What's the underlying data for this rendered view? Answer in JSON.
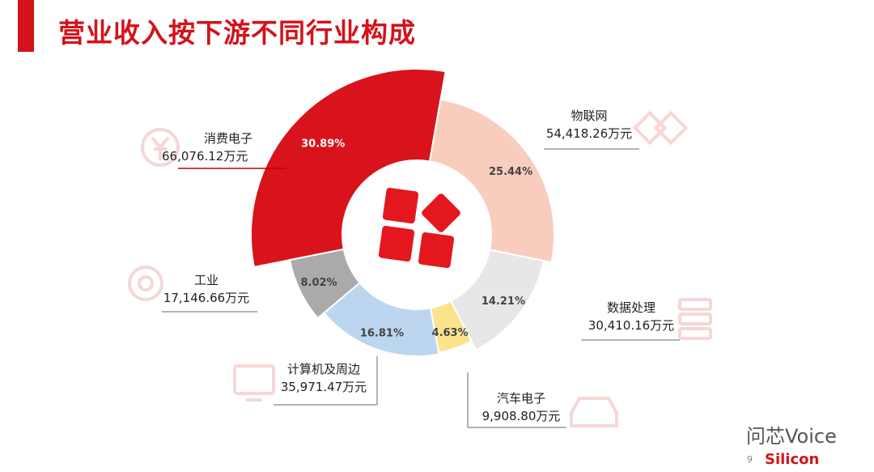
{
  "header": {
    "title": "营业收入按下游不同行业构成"
  },
  "chart_data": {
    "type": "pie",
    "subtype": "rose-donut",
    "title": "营业收入按下游不同行业构成",
    "unit": "万元",
    "slices": [
      {
        "name": "消费电子",
        "value": "66,076.12万元",
        "percent": "30.89%",
        "share": 30.89,
        "color": "#d9131b"
      },
      {
        "name": "物联网",
        "value": "54,418.26万元",
        "percent": "25.44%",
        "share": 25.44,
        "color": "#f9cdbd"
      },
      {
        "name": "数据处理",
        "value": "30,410.16万元",
        "percent": "14.21%",
        "share": 14.21,
        "color": "#e7e7e7"
      },
      {
        "name": "汽车电子",
        "value": "9,908.80万元",
        "percent": "4.63%",
        "share": 4.63,
        "color": "#fde28c"
      },
      {
        "name": "计算机及周边",
        "value": "35,971.47万元",
        "percent": "16.81%",
        "share": 16.81,
        "color": "#bcd6ef"
      },
      {
        "name": "工业",
        "value": "17,146.66万元",
        "percent": "8.02%",
        "share": 8.02,
        "color": "#aaaaaa"
      }
    ]
  },
  "footer": {
    "page_number": "9",
    "watermark": "问芯Voice",
    "brand": "Silicon"
  }
}
